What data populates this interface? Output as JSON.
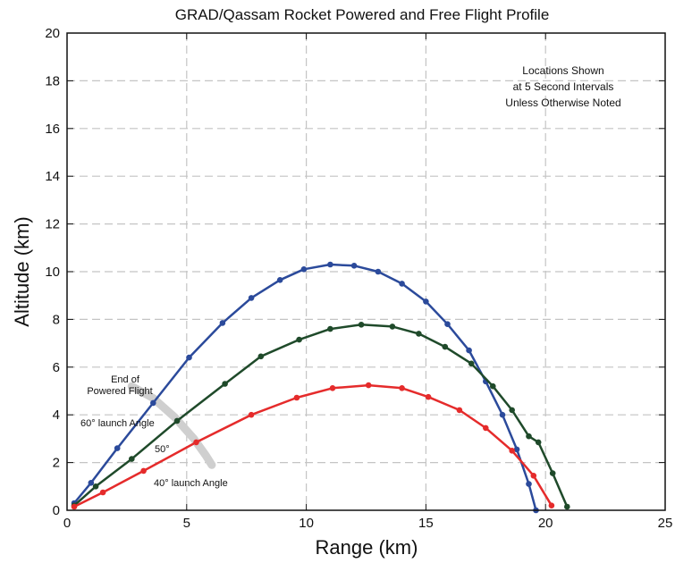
{
  "chart_data": {
    "type": "line",
    "title": "GRAD/Qassam Rocket Powered and Free Flight Profile",
    "xlabel": "Range (km)",
    "ylabel": "Altitude (km)",
    "xlim": [
      0,
      25
    ],
    "ylim": [
      0,
      20
    ],
    "x_ticks": [
      0,
      5,
      10,
      15,
      20,
      25
    ],
    "y_ticks": [
      0,
      2,
      4,
      6,
      8,
      10,
      12,
      14,
      16,
      18,
      20
    ],
    "grid": true,
    "note": [
      "Locations Shown",
      "at 5 Second Intervals",
      "Unless Otherwise Noted"
    ],
    "annotations": {
      "end_powered": [
        "End of",
        "Powered Flight"
      ],
      "angle_60": "60° launch Angle",
      "angle_50": "50°",
      "angle_40": "40° launch Angle"
    },
    "powered_flight_end_curve": [
      [
        2.7,
        5.2
      ],
      [
        3.6,
        4.7
      ],
      [
        4.5,
        3.9
      ],
      [
        5.3,
        3.0
      ],
      [
        5.8,
        2.3
      ],
      [
        6.05,
        1.9
      ]
    ],
    "series": [
      {
        "key": "60deg",
        "color": "#2b4a9b",
        "points": [
          [
            0.3,
            0.3
          ],
          [
            1.0,
            1.15
          ],
          [
            2.1,
            2.6
          ],
          [
            3.6,
            4.5
          ],
          [
            5.1,
            6.4
          ],
          [
            6.5,
            7.85
          ],
          [
            7.7,
            8.9
          ],
          [
            8.9,
            9.65
          ],
          [
            9.9,
            10.1
          ],
          [
            11.0,
            10.3
          ],
          [
            12.0,
            10.25
          ],
          [
            13.0,
            10.0
          ],
          [
            14.0,
            9.5
          ],
          [
            15.0,
            8.75
          ],
          [
            15.9,
            7.8
          ],
          [
            16.8,
            6.7
          ],
          [
            17.5,
            5.4
          ],
          [
            18.2,
            4.0
          ],
          [
            18.8,
            2.55
          ],
          [
            19.3,
            1.1
          ],
          [
            19.6,
            0.0
          ]
        ]
      },
      {
        "key": "50deg",
        "color": "#1f4a2a",
        "points": [
          [
            0.3,
            0.2
          ],
          [
            1.2,
            1.0
          ],
          [
            2.7,
            2.15
          ],
          [
            4.6,
            3.75
          ],
          [
            6.6,
            5.3
          ],
          [
            8.1,
            6.45
          ],
          [
            9.7,
            7.15
          ],
          [
            11.0,
            7.6
          ],
          [
            12.3,
            7.78
          ],
          [
            13.6,
            7.7
          ],
          [
            14.7,
            7.4
          ],
          [
            15.8,
            6.85
          ],
          [
            16.9,
            6.15
          ],
          [
            17.8,
            5.2
          ],
          [
            18.6,
            4.2
          ],
          [
            19.3,
            3.1
          ],
          [
            19.7,
            2.85
          ],
          [
            20.3,
            1.55
          ],
          [
            20.9,
            0.15
          ]
        ]
      },
      {
        "key": "40deg",
        "color": "#e52b2b",
        "points": [
          [
            0.3,
            0.15
          ],
          [
            1.5,
            0.75
          ],
          [
            3.2,
            1.65
          ],
          [
            5.4,
            2.85
          ],
          [
            7.7,
            4.0
          ],
          [
            9.6,
            4.72
          ],
          [
            11.1,
            5.12
          ],
          [
            12.6,
            5.24
          ],
          [
            14.0,
            5.12
          ],
          [
            15.1,
            4.75
          ],
          [
            16.4,
            4.2
          ],
          [
            17.5,
            3.45
          ],
          [
            18.6,
            2.5
          ],
          [
            19.5,
            1.45
          ],
          [
            20.25,
            0.2
          ]
        ]
      }
    ]
  }
}
